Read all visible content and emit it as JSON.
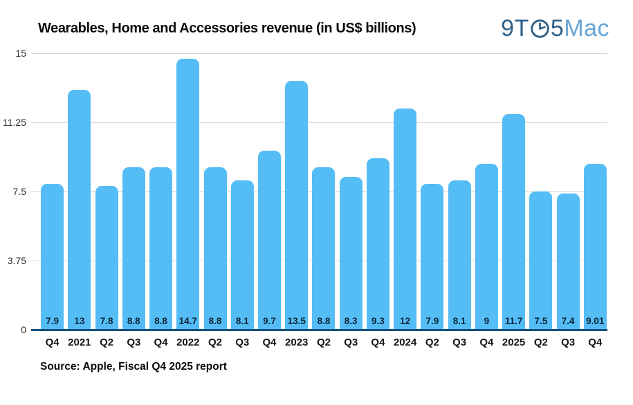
{
  "logo": {
    "part_9t": "9T",
    "part_5": "5",
    "part_mac": "Mac",
    "dark_color": "#2e6089",
    "light_color": "#67a4d4"
  },
  "chart_data": {
    "type": "bar",
    "title": "Wearables, Home and Accessories revenue (in US$ billions)",
    "source": "Source: Apple, Fiscal Q4 2025 report",
    "categories": [
      "Q4",
      "2021",
      "Q2",
      "Q3",
      "Q4",
      "2022",
      "Q2",
      "Q3",
      "Q4",
      "2023",
      "Q2",
      "Q3",
      "Q4",
      "2024",
      "Q2",
      "Q3",
      "Q4",
      "2025",
      "Q2",
      "Q3",
      "Q4"
    ],
    "values": [
      7.9,
      13,
      7.8,
      8.8,
      8.8,
      14.7,
      8.8,
      8.1,
      9.7,
      13.5,
      8.8,
      8.3,
      9.3,
      12,
      7.9,
      8.1,
      9,
      11.7,
      7.5,
      7.4,
      9.01
    ],
    "value_labels": [
      "7.9",
      "13",
      "7.8",
      "8.8",
      "8.8",
      "14.7",
      "8.8",
      "8.1",
      "9.7",
      "13.5",
      "8.8",
      "8.3",
      "9.3",
      "12",
      "7.9",
      "8.1",
      "9",
      "11.7",
      "7.5",
      "7.4",
      "9.01"
    ],
    "xlabel": "",
    "ylabel": "",
    "ylim": [
      0,
      15
    ],
    "yticks": [
      {
        "label": "15",
        "value": 15
      },
      {
        "label": "11.25",
        "value": 11.25
      },
      {
        "label": "7.5",
        "value": 7.5
      },
      {
        "label": "3.75",
        "value": 3.75
      },
      {
        "label": "0",
        "value": 0
      }
    ],
    "grid": "horizontal",
    "legend": "none",
    "colors": {
      "bar": "#55bdf6",
      "baseline": "#15527e",
      "gridline": "#d8d8d8",
      "value_label": "#0c2438"
    }
  }
}
